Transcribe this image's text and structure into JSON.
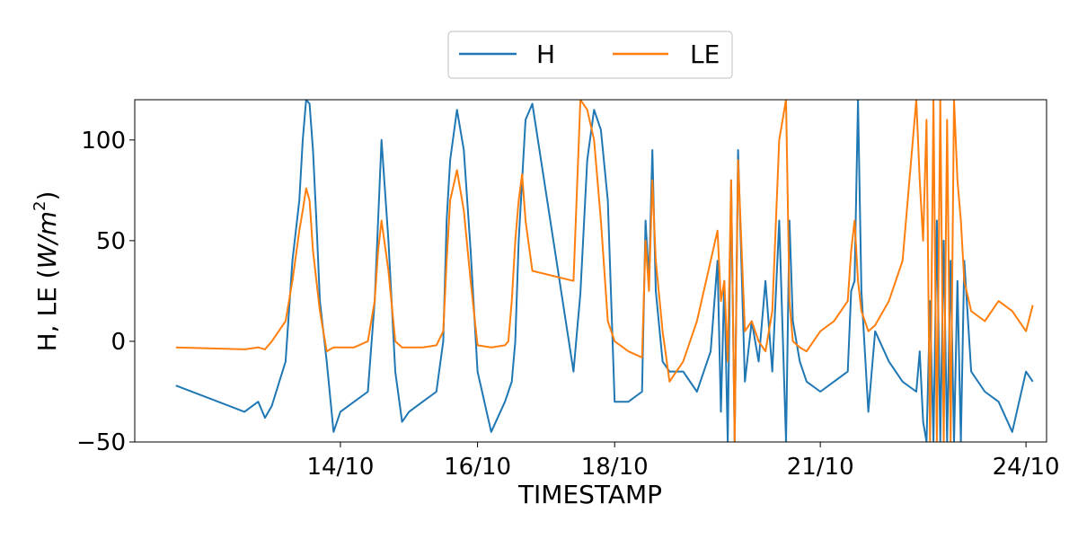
{
  "chart_data": {
    "type": "line",
    "xlabel": "TIMESTAMP",
    "ylabel_main": "H, LE (",
    "ylabel_unit_base": "W/m",
    "ylabel_unit_exp": "2",
    "ylabel_close": ")",
    "ylim": [
      -50,
      120
    ],
    "xlim": [
      11.0,
      24.3
    ],
    "yticks": [
      -50,
      0,
      50,
      100
    ],
    "ytick_labels": [
      "−50",
      "0",
      "50",
      "100"
    ],
    "xticks": [
      14,
      16,
      18,
      21,
      24
    ],
    "xtick_labels": [
      "14/10",
      "16/10",
      "18/10",
      "21/10",
      "24/10"
    ],
    "legend_placement": "top-center, outside plot",
    "grid": false,
    "series": [
      {
        "name": "H",
        "color": "#1f77b4",
        "x": [
          11.6,
          12.6,
          12.8,
          12.9,
          13.0,
          13.2,
          13.3,
          13.4,
          13.45,
          13.5,
          13.55,
          13.6,
          13.65,
          13.7,
          13.8,
          13.9,
          14.0,
          14.2,
          14.4,
          14.5,
          14.55,
          14.6,
          14.7,
          14.8,
          14.9,
          15.0,
          15.2,
          15.4,
          15.5,
          15.55,
          15.6,
          15.7,
          15.8,
          15.9,
          16.0,
          16.2,
          16.4,
          16.45,
          16.5,
          16.55,
          16.6,
          16.65,
          16.7,
          16.8,
          17.4,
          17.5,
          17.6,
          17.7,
          17.8,
          17.9,
          18.0,
          18.2,
          18.4,
          18.45,
          18.5,
          18.55,
          18.6,
          18.7,
          18.8,
          19.0,
          19.2,
          19.4,
          19.5,
          19.55,
          19.6,
          19.65,
          19.7,
          19.75,
          19.8,
          19.9,
          20.0,
          20.1,
          20.2,
          20.3,
          20.4,
          20.5,
          20.55,
          20.6,
          20.7,
          20.8,
          21.0,
          21.2,
          21.4,
          21.45,
          21.5,
          21.55,
          21.6,
          21.7,
          21.8,
          22.0,
          22.2,
          22.4,
          22.45,
          22.5,
          22.55,
          22.6,
          22.65,
          22.7,
          22.75,
          22.8,
          22.85,
          22.9,
          22.95,
          23.0,
          23.05,
          23.1,
          23.2,
          23.4,
          23.6,
          23.8,
          24.0,
          24.1
        ],
        "y": [
          -22,
          -35,
          -30,
          -38,
          -32,
          -10,
          40,
          70,
          100,
          120,
          118,
          95,
          60,
          20,
          -10,
          -45,
          -35,
          -30,
          -25,
          20,
          60,
          100,
          50,
          -15,
          -40,
          -35,
          -30,
          -25,
          0,
          60,
          90,
          115,
          95,
          45,
          -15,
          -45,
          -30,
          -25,
          -20,
          0,
          50,
          80,
          110,
          118,
          -15,
          24,
          90,
          115,
          105,
          70,
          -30,
          -30,
          -25,
          60,
          30,
          95,
          25,
          -10,
          -15,
          -15,
          -25,
          -5,
          40,
          -35,
          30,
          -50,
          80,
          -50,
          95,
          -20,
          10,
          -10,
          30,
          -15,
          60,
          -50,
          60,
          10,
          -10,
          -20,
          -25,
          -20,
          -15,
          25,
          30,
          120,
          25,
          -35,
          5,
          -10,
          -20,
          -25,
          -5,
          -40,
          -50,
          20,
          -50,
          60,
          -50,
          50,
          -50,
          40,
          -50,
          30,
          -50,
          40,
          -15,
          -25,
          -30,
          -45,
          -15,
          -20
        ]
      },
      {
        "name": "LE",
        "color": "#ff7f0e",
        "x": [
          11.6,
          12.6,
          12.8,
          12.9,
          13.0,
          13.2,
          13.3,
          13.4,
          13.45,
          13.5,
          13.55,
          13.6,
          13.7,
          13.8,
          13.9,
          14.0,
          14.2,
          14.4,
          14.5,
          14.55,
          14.6,
          14.7,
          14.8,
          14.9,
          15.0,
          15.2,
          15.4,
          15.5,
          15.55,
          15.6,
          15.7,
          15.8,
          15.9,
          16.0,
          16.2,
          16.4,
          16.45,
          16.5,
          16.55,
          16.6,
          16.65,
          16.7,
          16.8,
          17.4,
          17.5,
          17.6,
          17.7,
          17.8,
          17.9,
          18.0,
          18.2,
          18.4,
          18.45,
          18.5,
          18.55,
          18.6,
          18.7,
          18.8,
          19.0,
          19.2,
          19.4,
          19.5,
          19.55,
          19.6,
          19.65,
          19.7,
          19.75,
          19.8,
          19.9,
          20.0,
          20.1,
          20.2,
          20.3,
          20.4,
          20.5,
          20.55,
          20.6,
          20.7,
          20.8,
          21.0,
          21.2,
          21.4,
          21.45,
          21.5,
          21.55,
          21.6,
          21.7,
          21.8,
          22.0,
          22.2,
          22.4,
          22.45,
          22.5,
          22.55,
          22.6,
          22.65,
          22.7,
          22.75,
          22.8,
          22.85,
          22.9,
          22.95,
          23.0,
          23.05,
          23.1,
          23.2,
          23.4,
          23.6,
          23.8,
          24.0,
          24.1
        ],
        "y": [
          -3,
          -4,
          -3,
          -4,
          0,
          10,
          30,
          55,
          65,
          76,
          70,
          45,
          15,
          -5,
          -3,
          -3,
          -3,
          0,
          20,
          45,
          60,
          35,
          0,
          -3,
          -3,
          -3,
          -2,
          5,
          40,
          70,
          85,
          65,
          30,
          -2,
          -3,
          -2,
          0,
          20,
          50,
          70,
          83,
          60,
          35,
          30,
          120,
          115,
          100,
          60,
          10,
          0,
          -5,
          -8,
          50,
          25,
          80,
          40,
          5,
          -20,
          -10,
          10,
          40,
          55,
          20,
          30,
          -10,
          80,
          -50,
          90,
          5,
          10,
          0,
          -5,
          15,
          100,
          120,
          20,
          0,
          -3,
          -5,
          5,
          10,
          20,
          45,
          60,
          30,
          15,
          5,
          8,
          20,
          40,
          120,
          80,
          50,
          110,
          -50,
          120,
          -50,
          120,
          -50,
          110,
          -50,
          120,
          80,
          60,
          30,
          15,
          10,
          20,
          15,
          5,
          18
        ]
      }
    ]
  }
}
